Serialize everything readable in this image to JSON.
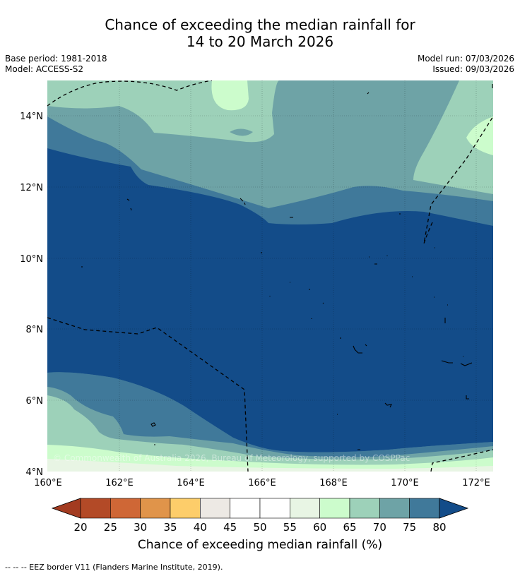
{
  "title": {
    "line1": "Chance of exceeding the median rainfall for",
    "line2": "14 to 20 March 2026"
  },
  "meta": {
    "base_period": "Base period: 1981-2018",
    "model": "Model: ACCESS-S2",
    "model_run": "Model run: 07/03/2026",
    "issued": "Issued: 09/03/2026"
  },
  "map": {
    "lat_labels": [
      "14°N",
      "12°N",
      "10°N",
      "8°N",
      "6°N",
      "4°N"
    ],
    "lon_labels": [
      "160°E",
      "162°E",
      "164°E",
      "166°E",
      "168°E",
      "170°E",
      "172°E"
    ],
    "copyright": "© Commonwealth of Australia 2026, Bureau of Meteorology, supported by COSPPac"
  },
  "legend": {
    "ticks": [
      "20",
      "25",
      "30",
      "35",
      "40",
      "45",
      "50",
      "55",
      "60",
      "65",
      "70",
      "75",
      "80"
    ],
    "title": "Chance of exceeding median rainfall (%)",
    "colors": {
      "below_20": "#a33b20",
      "20_25": "#b34a27",
      "25_30": "#cf6736",
      "30_35": "#e0944a",
      "35_40": "#fdcd6a",
      "40_45": "#ede9e4",
      "45_50": "#ffffff",
      "50_55": "#ffffff",
      "55_60": "#e8f5e4",
      "60_65": "#ccfccc",
      "65_70": "#9dd1b9",
      "70_75": "#6ea3a6",
      "75_80": "#40799a",
      "above_80": "#134c89"
    }
  },
  "eez_note": "--  --  -- EEZ border V11 (Flanders Marine Institute, 2019)."
}
